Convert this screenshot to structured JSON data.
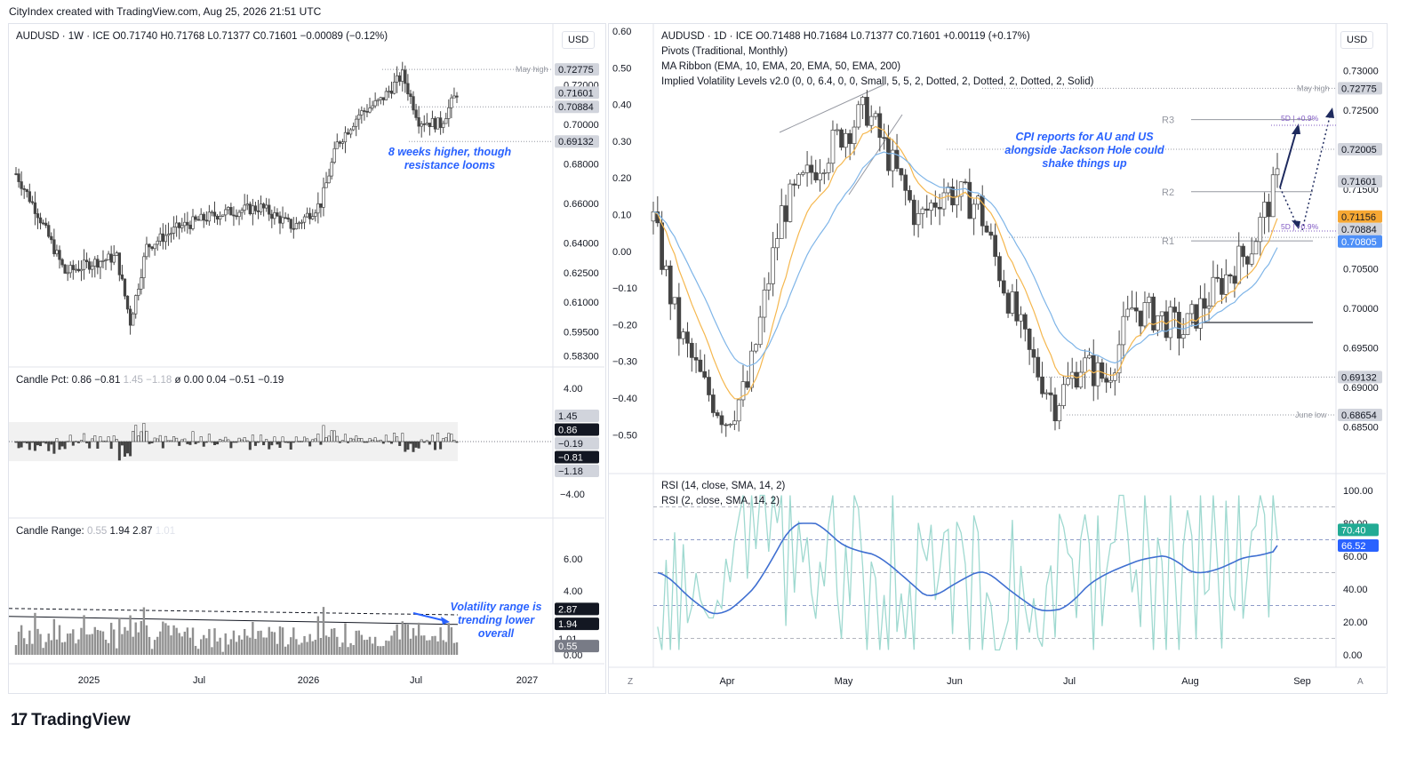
{
  "header": {
    "text": "CityIndex created with TradingView.com, Aug 25, 2026 21:51 UTC"
  },
  "brand": {
    "name": "TradingView",
    "logo": "17"
  },
  "colors": {
    "up": "#ffffff",
    "down": "#444444",
    "ema_fast": "#f5b74e",
    "ema_slow": "#7fb5e8",
    "rsi14": "#3f6fd1",
    "rsi2": "#9fd9d0",
    "price_tag": "#787b86",
    "highlight_tag": "#131722",
    "orange_tag": "#f7a833",
    "blue_tag": "#4d8ff7",
    "green_tag": "#22ab94",
    "text_blue": "#2962ff"
  },
  "left": {
    "symbol_line": "AUDUSD · 1W · ICE  O0.71740  H0.71768  L0.71377  C0.71601  −0.00089 (−0.12%)",
    "currency": "USD",
    "annotation": "8 weeks higher, though resistance looms",
    "annotation2": "Volatility range is trending lower overall",
    "may_high_label": "May high",
    "price_axis": [
      "0.72000",
      "0.70000",
      "0.68000",
      "0.66000",
      "0.64000",
      "0.62500",
      "0.61000",
      "0.59500",
      "0.58300"
    ],
    "price_tags": [
      {
        "text": "0.72775",
        "style": "gray"
      },
      {
        "text": "0.71601",
        "style": "gray"
      },
      {
        "text": "0.70884",
        "style": "gray"
      },
      {
        "text": "0.69132",
        "style": "gray"
      }
    ],
    "x_axis": [
      "2025",
      "Jul",
      "2026",
      "Jul",
      "2027"
    ],
    "pct_pane": {
      "label_name": "Candle Pct:",
      "values": [
        "0.86",
        "−0.81",
        "1.45",
        "−1.18",
        "ø",
        "0.00",
        "0.04",
        "−0.51",
        "−0.19"
      ],
      "axis": [
        "4.00",
        "−4.00"
      ],
      "tags": [
        "1.45",
        "0.86",
        "−0.19",
        "−0.81",
        "−1.18"
      ]
    },
    "range_pane": {
      "label_name": "Candle Range:",
      "values": [
        "0.55",
        "1.94",
        "2.87",
        "1.01"
      ],
      "axis": [
        "6.00",
        "4.00",
        "2.00",
        "0.00"
      ],
      "tags": [
        "2.87",
        "1.94",
        "1.01",
        "0.55"
      ]
    }
  },
  "right": {
    "symbol_line": "AUDUSD · 1D · ICE  O0.71488  H0.71684  L0.71377  C0.71601  +0.00119 (+0.17%)",
    "line2": "Pivots (Traditional, Monthly)",
    "line3": "MA Ribbon (EMA, 10, EMA, 20, EMA, 50, EMA, 200)",
    "line4": "Implied Volatility Levels v2.0 (0, 0, 6.4, 0, 0, Small, 5, 5, 2, Dotted, 2, Dotted, 2, Dotted, 2, Solid)",
    "currency": "USD",
    "annotation": "CPI reports for AU and US alongside Jackson Hole could shake things up",
    "may_high_label": "May high",
    "june_low_label": "June low",
    "r3": "R3",
    "r2": "R2",
    "r1": "R1",
    "iv_up": "5D | +0.9%",
    "iv_down": "5D | −0.9%",
    "left_axis": [
      "0.60",
      "0.50",
      "0.40",
      "0.30",
      "0.20",
      "0.10",
      "0.00",
      "−0.10",
      "−0.20",
      "−0.30",
      "−0.40",
      "−0.50"
    ],
    "price_axis": [
      "0.73000",
      "0.72500",
      "0.72000",
      "0.71500",
      "0.71000",
      "0.70500",
      "0.70000",
      "0.69500",
      "0.69000",
      "0.68500"
    ],
    "price_tags": [
      {
        "text": "0.72775",
        "style": "gray"
      },
      {
        "text": "0.72005",
        "style": "gray"
      },
      {
        "text": "0.71601",
        "style": "gray"
      },
      {
        "text": "0.71156",
        "style": "orange"
      },
      {
        "text": "0.70884",
        "style": "gray"
      },
      {
        "text": "0.70805",
        "style": "blue"
      },
      {
        "text": "0.69132",
        "style": "gray"
      },
      {
        "text": "0.68654",
        "style": "gray"
      }
    ],
    "x_axis": [
      "Apr",
      "May",
      "Jun",
      "Jul",
      "Aug",
      "Sep"
    ],
    "rsi": {
      "line1": "RSI (14, close, SMA, 14, 2)",
      "line2": "RSI (2, close, SMA, 14, 2)",
      "axis": [
        "100.00",
        "80.00",
        "60.00",
        "40.00",
        "20.00",
        "0.00"
      ],
      "tags": [
        "70.40",
        "66.52"
      ]
    },
    "corner_left": "Z",
    "corner_right": "A"
  },
  "chart_data": [
    {
      "type": "candlestick",
      "title": "AUDUSD · 1W · ICE",
      "timeframe": "1W",
      "ohlc_last": {
        "open": 0.7174,
        "high": 0.71768,
        "low": 0.71377,
        "close": 0.71601,
        "change": -0.00089,
        "change_pct": -0.12
      },
      "levels": {
        "may_high": 0.72775,
        "last": 0.71601,
        "level_2": 0.70884,
        "level_3": 0.69132
      },
      "x_ticks": [
        "2025",
        "Jul",
        "2026",
        "Jul",
        "2027"
      ],
      "close_path": [
        {
          "week": 0,
          "close": 0.675
        },
        {
          "week": 8,
          "close": 0.655
        },
        {
          "week": 18,
          "close": 0.625
        },
        {
          "week": 28,
          "close": 0.63
        },
        {
          "week": 37,
          "close": 0.633
        },
        {
          "week": 42,
          "close": 0.6
        },
        {
          "week": 48,
          "close": 0.638
        },
        {
          "week": 60,
          "close": 0.648
        },
        {
          "week": 75,
          "close": 0.655
        },
        {
          "week": 90,
          "close": 0.658
        },
        {
          "week": 102,
          "close": 0.648
        },
        {
          "week": 112,
          "close": 0.66
        },
        {
          "week": 118,
          "close": 0.69
        },
        {
          "week": 126,
          "close": 0.705
        },
        {
          "week": 134,
          "close": 0.712
        },
        {
          "week": 142,
          "close": 0.725
        },
        {
          "week": 148,
          "close": 0.702
        },
        {
          "week": 156,
          "close": 0.7
        },
        {
          "week": 162,
          "close": 0.716
        }
      ]
    },
    {
      "type": "candlestick",
      "title": "AUDUSD · 1D · ICE",
      "timeframe": "1D",
      "ohlc_last": {
        "open": 0.71488,
        "high": 0.71684,
        "low": 0.71377,
        "close": 0.71601,
        "change": 0.00119,
        "change_pct": 0.17
      },
      "levels": {
        "may_high": 0.72775,
        "R3": 0.7238,
        "R2": 0.7147,
        "R1": 0.7085,
        "june_low": 0.68654,
        "ema_fast": 0.71156,
        "ema_slow": 0.70805,
        "pivot_line": 0.6982,
        "level_69132": 0.69132
      },
      "x_ticks": [
        "Apr",
        "May",
        "Jun",
        "Jul",
        "Aug",
        "Sep"
      ],
      "close_path": [
        {
          "day": 0,
          "close": 0.711
        },
        {
          "day": 6,
          "close": 0.697
        },
        {
          "day": 12,
          "close": 0.69
        },
        {
          "day": 17,
          "close": 0.686
        },
        {
          "day": 22,
          "close": 0.69
        },
        {
          "day": 30,
          "close": 0.712
        },
        {
          "day": 38,
          "close": 0.718
        },
        {
          "day": 44,
          "close": 0.722
        },
        {
          "day": 50,
          "close": 0.725
        },
        {
          "day": 56,
          "close": 0.718
        },
        {
          "day": 62,
          "close": 0.711
        },
        {
          "day": 68,
          "close": 0.715
        },
        {
          "day": 76,
          "close": 0.713
        },
        {
          "day": 82,
          "close": 0.703
        },
        {
          "day": 88,
          "close": 0.694
        },
        {
          "day": 94,
          "close": 0.688
        },
        {
          "day": 100,
          "close": 0.693
        },
        {
          "day": 106,
          "close": 0.691
        },
        {
          "day": 112,
          "close": 0.7
        },
        {
          "day": 118,
          "close": 0.699
        },
        {
          "day": 124,
          "close": 0.697
        },
        {
          "day": 128,
          "close": 0.7
        },
        {
          "day": 134,
          "close": 0.704
        },
        {
          "day": 140,
          "close": 0.708
        },
        {
          "day": 146,
          "close": 0.716
        }
      ]
    },
    {
      "type": "line",
      "title": "RSI",
      "series": [
        {
          "name": "RSI (14, close, SMA, 14, 2)",
          "last": 66.52
        },
        {
          "name": "RSI (2, close, SMA, 14, 2)",
          "last": 70.4
        }
      ],
      "ylim": [
        0,
        100
      ],
      "levels": [
        90,
        70,
        50,
        30,
        10
      ]
    }
  ]
}
